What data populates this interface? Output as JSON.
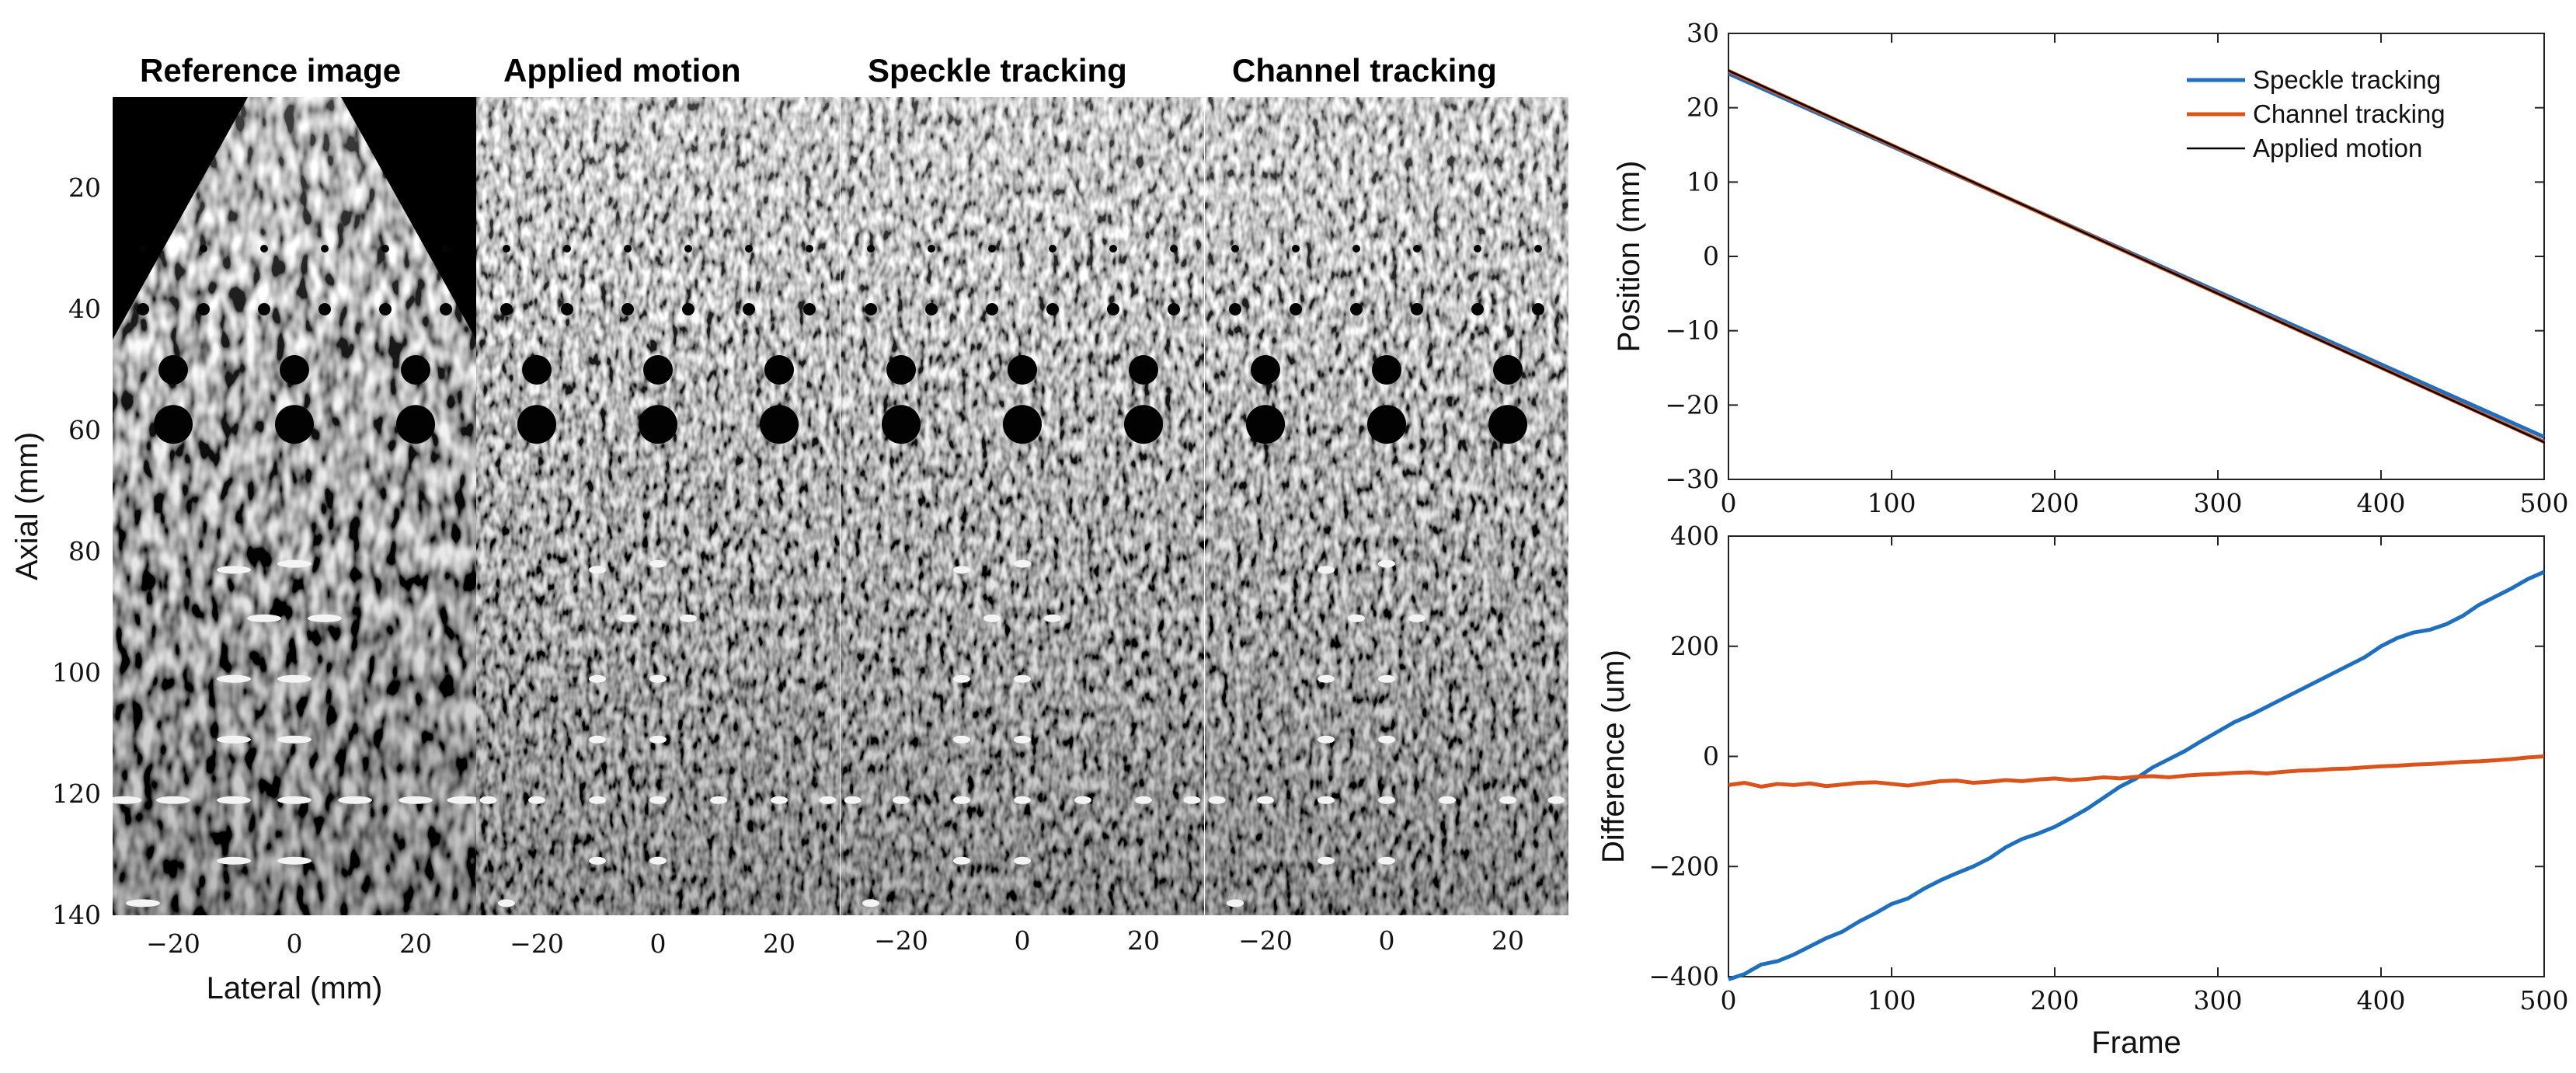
{
  "panels": [
    {
      "title": "Reference image",
      "style": "reference"
    },
    {
      "title": "Applied motion",
      "style": "speckle"
    },
    {
      "title": "Speckle tracking",
      "style": "speckle"
    },
    {
      "title": "Channel tracking",
      "style": "speckle"
    }
  ],
  "image_axes": {
    "ylabel": "Axial (mm)",
    "xlabel": "Lateral (mm)",
    "yticks": [
      20,
      40,
      60,
      80,
      100,
      120,
      140
    ],
    "xticks": [
      -20,
      0,
      20
    ],
    "ylim": [
      5,
      140
    ],
    "xlim": [
      -30,
      30
    ]
  },
  "chart_data": [
    {
      "type": "line",
      "xlabel": "",
      "ylabel": "Position (mm)",
      "xlim": [
        0,
        500
      ],
      "ylim": [
        -30,
        30
      ],
      "xticks": [
        0,
        100,
        200,
        300,
        400,
        500
      ],
      "yticks": [
        30,
        20,
        10,
        0,
        -10,
        -20,
        -30
      ],
      "legend_position": "top-right",
      "series": [
        {
          "name": "Speckle tracking",
          "color": "#1f6fbf",
          "x": [
            0,
            500
          ],
          "y": [
            24.6,
            -24.3
          ]
        },
        {
          "name": "Channel tracking",
          "color": "#d9531a",
          "x": [
            0,
            500
          ],
          "y": [
            24.95,
            -24.95
          ]
        },
        {
          "name": "Applied motion",
          "color": "#000000",
          "x": [
            0,
            500
          ],
          "y": [
            25.0,
            -25.0
          ]
        }
      ]
    },
    {
      "type": "line",
      "xlabel": "Frame",
      "ylabel": "Difference (um)",
      "xlim": [
        0,
        500
      ],
      "ylim": [
        -400,
        400
      ],
      "xticks": [
        0,
        100,
        200,
        300,
        400,
        500
      ],
      "yticks": [
        400,
        200,
        0,
        -200,
        -400
      ],
      "series": [
        {
          "color": "#1f6fbf",
          "x": [
            0,
            10,
            20,
            30,
            40,
            50,
            60,
            70,
            80,
            90,
            100,
            110,
            120,
            130,
            140,
            150,
            160,
            170,
            180,
            190,
            200,
            210,
            220,
            230,
            240,
            250,
            260,
            270,
            280,
            290,
            300,
            310,
            320,
            330,
            340,
            350,
            360,
            370,
            380,
            390,
            400,
            410,
            420,
            430,
            440,
            450,
            460,
            470,
            480,
            490,
            500
          ],
          "y": [
            -405,
            -395,
            -378,
            -372,
            -360,
            -345,
            -330,
            -318,
            -300,
            -285,
            -268,
            -258,
            -240,
            -225,
            -212,
            -200,
            -185,
            -165,
            -150,
            -140,
            -128,
            -112,
            -95,
            -75,
            -55,
            -40,
            -20,
            -5,
            10,
            28,
            45,
            62,
            75,
            90,
            105,
            120,
            135,
            150,
            165,
            180,
            200,
            215,
            225,
            230,
            240,
            255,
            275,
            290,
            305,
            322,
            335
          ]
        },
        {
          "color": "#d9531a",
          "x": [
            0,
            10,
            20,
            30,
            40,
            50,
            60,
            70,
            80,
            90,
            100,
            110,
            120,
            130,
            140,
            150,
            160,
            170,
            180,
            190,
            200,
            210,
            220,
            230,
            240,
            250,
            260,
            270,
            280,
            290,
            300,
            310,
            320,
            330,
            340,
            350,
            360,
            370,
            380,
            390,
            400,
            410,
            420,
            430,
            440,
            450,
            460,
            470,
            480,
            490,
            500
          ],
          "y": [
            -52,
            -48,
            -55,
            -50,
            -52,
            -49,
            -54,
            -51,
            -48,
            -47,
            -50,
            -53,
            -49,
            -45,
            -44,
            -48,
            -46,
            -43,
            -45,
            -42,
            -40,
            -43,
            -41,
            -38,
            -40,
            -37,
            -36,
            -38,
            -35,
            -33,
            -32,
            -30,
            -29,
            -31,
            -28,
            -26,
            -25,
            -23,
            -22,
            -20,
            -18,
            -17,
            -15,
            -14,
            -12,
            -10,
            -9,
            -7,
            -5,
            -2,
            0
          ]
        }
      ]
    }
  ]
}
